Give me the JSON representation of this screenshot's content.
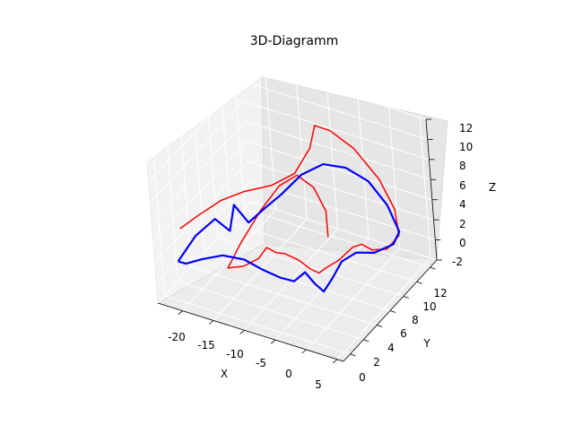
{
  "chart_data": {
    "type": "line",
    "title": "3D-Diagramm",
    "xlabel": "X",
    "ylabel": "Y",
    "zlabel": "Z",
    "xlim": [
      -24,
      6
    ],
    "ylim": [
      -1,
      13
    ],
    "zlim": [
      -2,
      12
    ],
    "xticks": [
      -20,
      -15,
      -10,
      -5,
      0,
      5
    ],
    "yticks": [
      0,
      2,
      4,
      6,
      8,
      10,
      12
    ],
    "zticks": [
      -2,
      0,
      2,
      4,
      6,
      8,
      10,
      12
    ],
    "grid": true,
    "series": [
      {
        "color": "#ff0000",
        "points": [
          [
            -22.0,
            1.2,
            4.2
          ],
          [
            -20.0,
            2.2,
            5.2
          ],
          [
            -17.5,
            3.4,
            6.3
          ],
          [
            -15.0,
            4.6,
            6.8
          ],
          [
            -12.0,
            6.0,
            7.0
          ],
          [
            -9.5,
            7.2,
            7.8
          ],
          [
            -8.0,
            8.3,
            9.8
          ],
          [
            -7.5,
            8.8,
            11.8
          ],
          [
            -6.0,
            9.6,
            11.0
          ],
          [
            -3.5,
            10.6,
            9.0
          ],
          [
            -0.5,
            11.3,
            6.0
          ],
          [
            1.5,
            11.5,
            3.2
          ],
          [
            2.2,
            11.2,
            1.0
          ],
          [
            1.0,
            10.4,
            0.0
          ],
          [
            -0.5,
            9.6,
            0.2
          ],
          [
            -1.5,
            9.0,
            1.0
          ],
          [
            -2.5,
            8.6,
            0.8
          ],
          [
            -4.0,
            7.8,
            -0.2
          ],
          [
            -5.2,
            7.0,
            -0.6
          ],
          [
            -6.0,
            6.6,
            -1.0
          ],
          [
            -6.8,
            6.1,
            -0.4
          ],
          [
            -8.0,
            5.6,
            0.6
          ],
          [
            -9.5,
            5.0,
            1.4
          ],
          [
            -10.5,
            4.6,
            1.6
          ],
          [
            -11.5,
            4.2,
            2.2
          ],
          [
            -12.5,
            3.8,
            1.2
          ],
          [
            -14.5,
            3.3,
            0.4
          ],
          [
            -16.5,
            2.8,
            0.2
          ],
          [
            -15.5,
            4.0,
            2.0
          ],
          [
            -13.5,
            5.4,
            4.6
          ],
          [
            -11.5,
            6.6,
            6.6
          ],
          [
            -9.5,
            7.5,
            7.4
          ],
          [
            -7.5,
            8.0,
            6.2
          ],
          [
            -6.0,
            8.2,
            4.0
          ],
          [
            -5.5,
            7.8,
            1.8
          ]
        ]
      },
      {
        "color": "#0000ff",
        "points": [
          [
            -22.5,
            1.0,
            1.0
          ],
          [
            -20.5,
            2.0,
            3.2
          ],
          [
            -18.5,
            3.2,
            4.4
          ],
          [
            -17.0,
            3.9,
            3.0
          ],
          [
            -16.5,
            4.3,
            5.4
          ],
          [
            -15.0,
            4.9,
            3.5
          ],
          [
            -13.0,
            5.6,
            4.8
          ],
          [
            -11.0,
            6.4,
            6.0
          ],
          [
            -8.5,
            7.3,
            7.8
          ],
          [
            -6.0,
            8.3,
            8.6
          ],
          [
            -3.5,
            9.3,
            8.0
          ],
          [
            -1.0,
            10.2,
            6.5
          ],
          [
            1.0,
            10.9,
            4.0
          ],
          [
            2.3,
            11.2,
            1.4
          ],
          [
            1.5,
            10.9,
            0.2
          ],
          [
            -0.8,
            10.1,
            -0.5
          ],
          [
            -2.8,
            9.3,
            -0.3
          ],
          [
            -4.5,
            8.6,
            -1.0
          ],
          [
            -5.5,
            8.0,
            -2.4
          ],
          [
            -6.3,
            7.3,
            -3.4
          ],
          [
            -6.9,
            6.6,
            -2.2
          ],
          [
            -7.6,
            6.0,
            -0.8
          ],
          [
            -8.8,
            5.4,
            -1.5
          ],
          [
            -10.3,
            4.8,
            -1.0
          ],
          [
            -12.2,
            4.0,
            0.0
          ],
          [
            -14.2,
            3.2,
            1.2
          ],
          [
            -16.6,
            2.3,
            1.8
          ],
          [
            -19.0,
            1.4,
            1.6
          ],
          [
            -21.0,
            0.8,
            1.2
          ],
          [
            -22.5,
            1.0,
            1.0
          ]
        ]
      }
    ]
  }
}
